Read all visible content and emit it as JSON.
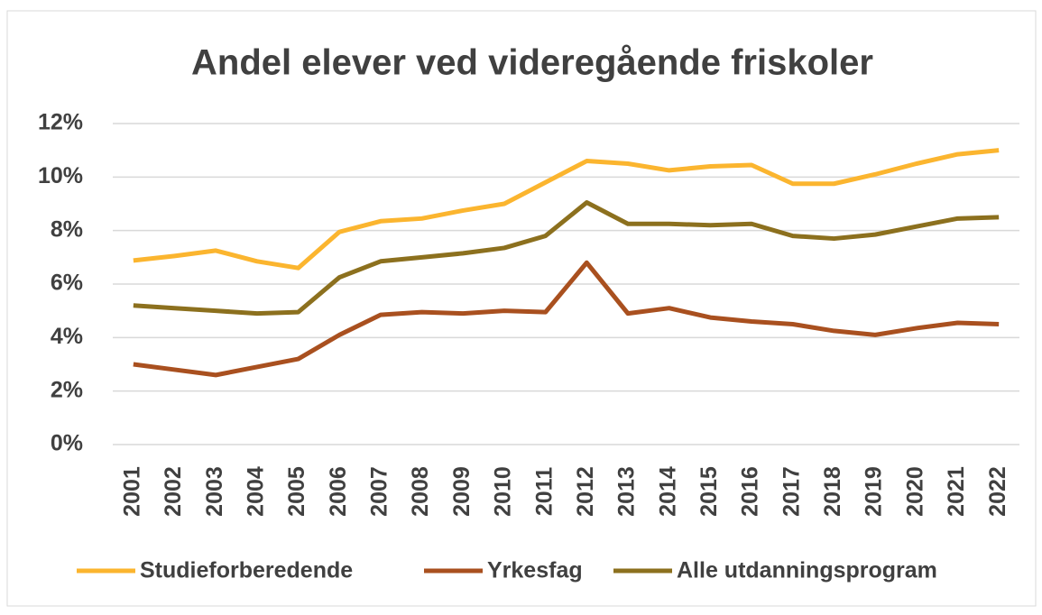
{
  "chart_data": {
    "type": "line",
    "title": "Andel elever ved videregående friskoler",
    "categories": [
      "2001",
      "2002",
      "2003",
      "2004",
      "2005",
      "2006",
      "2007",
      "2008",
      "2009",
      "2010",
      "2011",
      "2012",
      "2013",
      "2014",
      "2015",
      "2016",
      "2017",
      "2018",
      "2019",
      "2020",
      "2021",
      "2022"
    ],
    "series": [
      {
        "name": "Studieforberedende",
        "color": "#fbb52f",
        "values": [
          6.88,
          7.05,
          7.25,
          6.85,
          6.6,
          7.95,
          8.35,
          8.45,
          8.75,
          9.0,
          9.8,
          10.6,
          10.5,
          10.25,
          10.4,
          10.45,
          9.75,
          9.75,
          10.1,
          10.5,
          10.85,
          11.0
        ]
      },
      {
        "name": "Yrkesfag",
        "color": "#a9501f",
        "values": [
          3.0,
          2.8,
          2.6,
          2.9,
          3.2,
          4.1,
          4.85,
          4.95,
          4.9,
          5.0,
          4.95,
          6.8,
          4.9,
          5.1,
          4.75,
          4.6,
          4.5,
          4.25,
          4.1,
          4.35,
          4.55,
          4.5
        ]
      },
      {
        "name": "Alle utdanningsprogram",
        "color": "#8c701e",
        "values": [
          5.2,
          5.1,
          5.0,
          4.9,
          4.95,
          6.25,
          6.85,
          7.0,
          7.15,
          7.35,
          7.8,
          9.05,
          8.25,
          8.25,
          8.2,
          8.25,
          7.8,
          7.7,
          7.85,
          8.15,
          8.45,
          8.5
        ]
      }
    ],
    "ylim": [
      0,
      12
    ],
    "yticks": [
      {
        "value": 0,
        "label": "0%"
      },
      {
        "value": 2,
        "label": "2%"
      },
      {
        "value": 4,
        "label": "4%"
      },
      {
        "value": 6,
        "label": "6%"
      },
      {
        "value": 8,
        "label": "8%"
      },
      {
        "value": 10,
        "label": "10%"
      },
      {
        "value": 12,
        "label": "12%"
      }
    ],
    "grid": true,
    "legend": "bottom"
  }
}
